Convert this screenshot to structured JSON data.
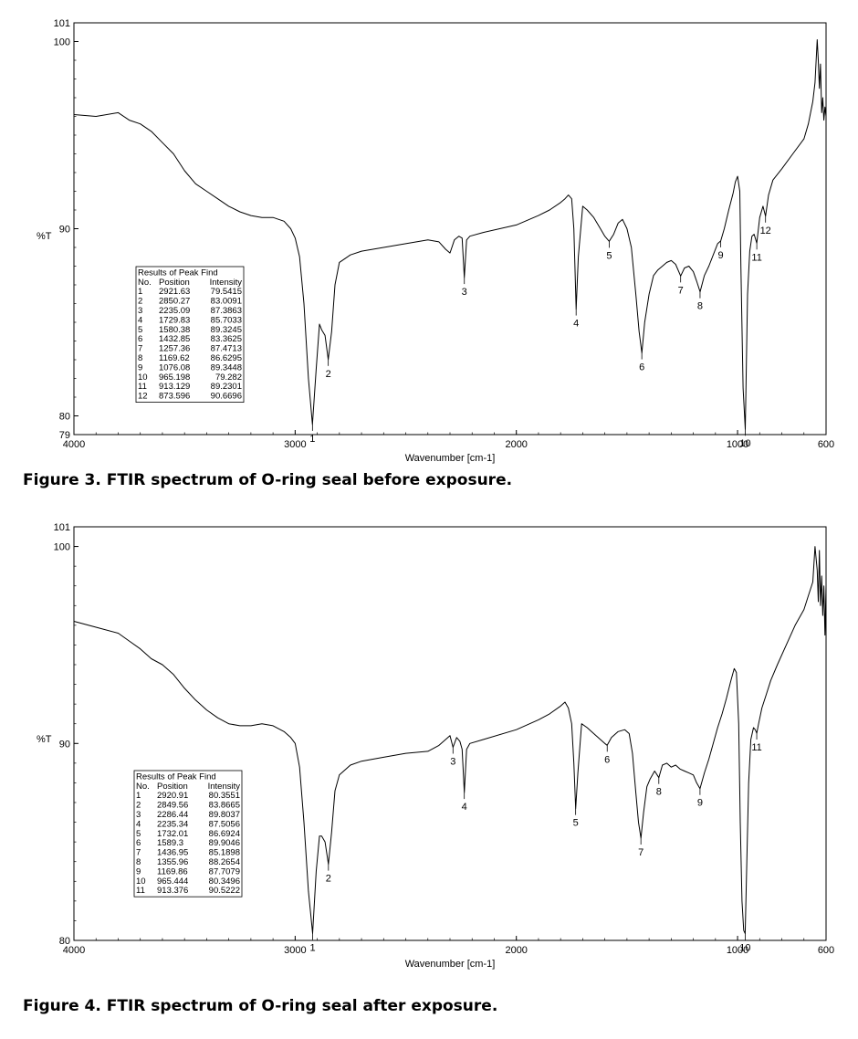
{
  "figures": [
    {
      "caption": "Figure 3. FTIR spectrum of O-ring seal before exposure.",
      "chart_data": {
        "type": "line",
        "xlabel": "Wavenumber [cm-1]",
        "ylabel": "%T",
        "xlim": [
          4000,
          600
        ],
        "ylim": [
          79,
          101
        ],
        "x_reversed": true,
        "x_ticks": [
          "4000",
          "3000",
          "2000",
          "1000",
          "600"
        ],
        "y_ticks": [
          "79",
          "80",
          "90",
          "100",
          "101"
        ],
        "x_tick_values": [
          4000,
          3000,
          2000,
          1000,
          600
        ],
        "y_tick_values": [
          79,
          80,
          90,
          100,
          101
        ],
        "grid": false,
        "series": [
          {
            "x": [
              4000,
              3900,
              3800,
              3750,
              3700,
              3650,
              3600,
              3550,
              3500,
              3450,
              3400,
              3350,
              3300,
              3250,
              3200,
              3150,
              3100,
              3050,
              3020,
              3000,
              2980,
              2960,
              2940,
              2921.63,
              2905,
              2890,
              2880,
              2865,
              2850.27,
              2835,
              2820,
              2800,
              2750,
              2700,
              2600,
              2500,
              2400,
              2350,
              2320,
              2300,
              2280,
              2260,
              2245,
              2235.09,
              2225,
              2210,
              2150,
              2000,
              1900,
              1850,
              1800,
              1780,
              1765,
              1750,
              1740,
              1729.83,
              1720,
              1700,
              1680,
              1650,
              1620,
              1600,
              1580.38,
              1560,
              1540,
              1520,
              1500,
              1480,
              1460,
              1445,
              1432.85,
              1420,
              1400,
              1380,
              1360,
              1340,
              1320,
              1300,
              1280,
              1257.36,
              1240,
              1220,
              1200,
              1185,
              1169.62,
              1150,
              1130,
              1110,
              1090,
              1076.08,
              1060,
              1040,
              1020,
              1010,
              1000,
              990,
              985,
              975,
              965.198,
              955,
              945,
              935,
              925,
              913.129,
              900,
              885,
              873.596,
              860,
              840,
              800,
              750,
              700,
              680,
              660,
              650,
              640,
              635,
              630,
              625,
              620,
              615,
              610,
              605,
              600
            ],
            "y": [
              96.1,
              96.0,
              96.2,
              95.8,
              95.6,
              95.2,
              94.6,
              94.0,
              93.1,
              92.4,
              92.0,
              91.6,
              91.2,
              90.9,
              90.7,
              90.6,
              90.6,
              90.4,
              90.0,
              89.5,
              88.5,
              86.0,
              82.0,
              79.5415,
              82.5,
              84.9,
              84.6,
              84.3,
              83.0091,
              84.5,
              87.0,
              88.2,
              88.6,
              88.8,
              89.0,
              89.2,
              89.4,
              89.3,
              88.9,
              88.7,
              89.4,
              89.6,
              89.5,
              87.3863,
              89.4,
              89.6,
              89.8,
              90.2,
              90.7,
              91.0,
              91.4,
              91.6,
              91.8,
              91.6,
              90.0,
              85.7033,
              88.5,
              91.2,
              91.0,
              90.6,
              90.0,
              89.6,
              89.3245,
              89.7,
              90.3,
              90.5,
              90.0,
              89.0,
              86.5,
              84.5,
              83.3625,
              85.0,
              86.5,
              87.5,
              87.8,
              88.0,
              88.2,
              88.3,
              88.1,
              87.4713,
              87.9,
              88.0,
              87.7,
              87.2,
              86.6295,
              87.5,
              88.0,
              88.6,
              89.2,
              89.3448,
              90.0,
              91.0,
              91.9,
              92.5,
              92.8,
              92.0,
              88.0,
              81.5,
              79.282,
              86.5,
              88.8,
              89.6,
              89.7,
              89.2301,
              90.6,
              91.2,
              90.6696,
              91.8,
              92.6,
              93.2,
              94.0,
              94.8,
              95.6,
              96.8,
              97.8,
              100.1,
              99.0,
              97.5,
              98.8,
              96.2,
              97.0,
              95.8,
              96.5,
              96.0
            ],
            "color": "#000000"
          }
        ],
        "peak_labels": [
          {
            "label": "1",
            "x": 2921.63,
            "y": 79.5415
          },
          {
            "label": "2",
            "x": 2850.27,
            "y": 83.0091
          },
          {
            "label": "3",
            "x": 2235.09,
            "y": 87.3863
          },
          {
            "label": "4",
            "x": 1729.83,
            "y": 85.7033
          },
          {
            "label": "5",
            "x": 1580.38,
            "y": 89.3245
          },
          {
            "label": "6",
            "x": 1432.85,
            "y": 83.3625
          },
          {
            "label": "7",
            "x": 1257.36,
            "y": 87.4713
          },
          {
            "label": "8",
            "x": 1169.62,
            "y": 86.6295
          },
          {
            "label": "9",
            "x": 1076.08,
            "y": 89.3448
          },
          {
            "label": "10",
            "x": 965.198,
            "y": 79.282
          },
          {
            "label": "11",
            "x": 913.129,
            "y": 89.2301
          },
          {
            "label": "12",
            "x": 873.596,
            "y": 90.6696
          }
        ],
        "table": {
          "title": "Results of Peak Find",
          "headers": [
            "No.",
            "Position",
            "Intensity"
          ],
          "rows": [
            [
              "1",
              "2921.63",
              "79.5415"
            ],
            [
              "2",
              "2850.27",
              "83.0091"
            ],
            [
              "3",
              "2235.09",
              "87.3863"
            ],
            [
              "4",
              "1729.83",
              "85.7033"
            ],
            [
              "5",
              "1580.38",
              "89.3245"
            ],
            [
              "6",
              "1432.85",
              "83.3625"
            ],
            [
              "7",
              "1257.36",
              "87.4713"
            ],
            [
              "8",
              "1169.62",
              "86.6295"
            ],
            [
              "9",
              "1076.08",
              "89.3448"
            ],
            [
              "10",
              "965.198",
              "79.282"
            ],
            [
              "11",
              "913.129",
              "89.2301"
            ],
            [
              "12",
              "873.596",
              "90.6696"
            ]
          ]
        }
      }
    },
    {
      "caption": "Figure 4. FTIR spectrum of O-ring seal after exposure.",
      "chart_data": {
        "type": "line",
        "xlabel": "Wavenumber [cm-1]",
        "ylabel": "%T",
        "xlim": [
          4000,
          600
        ],
        "ylim": [
          80,
          101
        ],
        "x_reversed": true,
        "x_ticks": [
          "4000",
          "3000",
          "2000",
          "1000",
          "600"
        ],
        "y_ticks": [
          "80",
          "90",
          "100",
          "101"
        ],
        "x_tick_values": [
          4000,
          3000,
          2000,
          1000,
          600
        ],
        "y_tick_values": [
          80,
          90,
          100,
          101
        ],
        "grid": false,
        "series": [
          {
            "x": [
              4000,
              3900,
              3800,
              3750,
              3700,
              3650,
              3600,
              3550,
              3500,
              3450,
              3400,
              3350,
              3300,
              3250,
              3200,
              3150,
              3100,
              3050,
              3020,
              3000,
              2980,
              2960,
              2940,
              2920.91,
              2905,
              2890,
              2880,
              2865,
              2849.56,
              2835,
              2820,
              2800,
              2750,
              2700,
              2600,
              2500,
              2400,
              2350,
              2300,
              2286.44,
              2270,
              2255,
              2245,
              2235.34,
              2225,
              2210,
              2150,
              2000,
              1900,
              1850,
              1800,
              1780,
              1765,
              1750,
              1740,
              1732.01,
              1722,
              1705,
              1680,
              1650,
              1620,
              1600,
              1589.3,
              1570,
              1540,
              1510,
              1490,
              1475,
              1460,
              1448,
              1436.95,
              1425,
              1410,
              1395,
              1375,
              1355.96,
              1340,
              1320,
              1300,
              1280,
              1260,
              1240,
              1220,
              1200,
              1185,
              1169.86,
              1150,
              1130,
              1110,
              1090,
              1070,
              1050,
              1030,
              1015,
              1005,
              995,
              988,
              980,
              972,
              965.444,
              958,
              950,
              940,
              928,
              920,
              913.376,
              905,
              890,
              870,
              850,
              820,
              780,
              740,
              700,
              680,
              660,
              650,
              640,
              635,
              630,
              625,
              620,
              615,
              610,
              605,
              600
            ],
            "y": [
              96.2,
              95.9,
              95.6,
              95.2,
              94.8,
              94.3,
              94.0,
              93.5,
              92.8,
              92.2,
              91.7,
              91.3,
              91.0,
              90.9,
              90.9,
              91.0,
              90.9,
              90.6,
              90.3,
              90.0,
              88.8,
              86.0,
              82.5,
              80.3551,
              83.5,
              85.3,
              85.3,
              85.0,
              83.8665,
              85.5,
              87.6,
              88.4,
              88.9,
              89.1,
              89.3,
              89.5,
              89.6,
              89.9,
              90.4,
              89.8037,
              90.3,
              90.1,
              89.7,
              87.5056,
              89.7,
              90.0,
              90.2,
              90.7,
              91.2,
              91.5,
              91.9,
              92.1,
              91.8,
              91.0,
              89.0,
              86.6924,
              88.5,
              91.0,
              90.8,
              90.5,
              90.2,
              90.0,
              89.9046,
              90.3,
              90.6,
              90.7,
              90.5,
              89.5,
              87.5,
              86.0,
              85.1898,
              86.5,
              87.8,
              88.2,
              88.6,
              88.2654,
              88.9,
              89.0,
              88.8,
              88.9,
              88.7,
              88.6,
              88.5,
              88.4,
              88.0,
              87.7079,
              88.5,
              89.2,
              90.0,
              90.8,
              91.5,
              92.3,
              93.2,
              93.8,
              93.6,
              91.0,
              86.0,
              82.0,
              80.5,
              80.3496,
              84.0,
              88.0,
              90.2,
              90.8,
              90.7,
              90.5222,
              91.0,
              91.8,
              92.5,
              93.2,
              94.0,
              95.0,
              96.0,
              96.8,
              97.5,
              98.2,
              100.0,
              98.8,
              97.2,
              99.8,
              97.0,
              98.5,
              96.5,
              98.0,
              95.5,
              98.0
            ],
            "color": "#000000"
          }
        ],
        "peak_labels": [
          {
            "label": "1",
            "x": 2920.91,
            "y": 80.3551
          },
          {
            "label": "2",
            "x": 2849.56,
            "y": 83.8665
          },
          {
            "label": "3",
            "x": 2286.44,
            "y": 89.8037
          },
          {
            "label": "4",
            "x": 2235.34,
            "y": 87.5056
          },
          {
            "label": "5",
            "x": 1732.01,
            "y": 86.6924
          },
          {
            "label": "6",
            "x": 1589.3,
            "y": 89.9046
          },
          {
            "label": "7",
            "x": 1436.95,
            "y": 85.1898
          },
          {
            "label": "8",
            "x": 1355.96,
            "y": 88.2654
          },
          {
            "label": "9",
            "x": 1169.86,
            "y": 87.7079
          },
          {
            "label": "10",
            "x": 965.444,
            "y": 80.3496
          },
          {
            "label": "11",
            "x": 913.376,
            "y": 90.5222
          }
        ],
        "table": {
          "title": "Results of Peak Find",
          "headers": [
            "No.",
            "Position",
            "Intensity"
          ],
          "rows": [
            [
              "1",
              "2920.91",
              "80.3551"
            ],
            [
              "2",
              "2849.56",
              "83.8665"
            ],
            [
              "3",
              "2286.44",
              "89.8037"
            ],
            [
              "4",
              "2235.34",
              "87.5056"
            ],
            [
              "5",
              "1732.01",
              "86.6924"
            ],
            [
              "6",
              "1589.3",
              "89.9046"
            ],
            [
              "7",
              "1436.95",
              "85.1898"
            ],
            [
              "8",
              "1355.96",
              "88.2654"
            ],
            [
              "9",
              "1169.86",
              "87.7079"
            ],
            [
              "10",
              "965.444",
              "80.3496"
            ],
            [
              "11",
              "913.376",
              "90.5222"
            ]
          ]
        }
      }
    }
  ]
}
